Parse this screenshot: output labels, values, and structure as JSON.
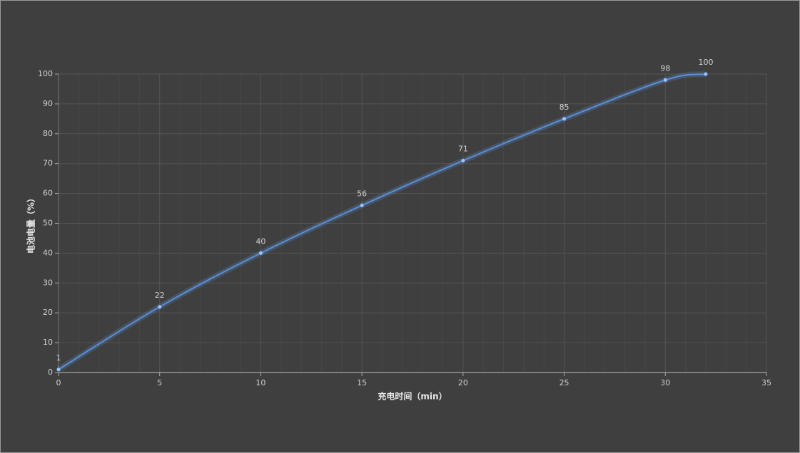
{
  "chart_data": {
    "type": "line",
    "x_label": "充电时间（min）",
    "y_label": "电池电量（%）",
    "x": [
      0,
      5,
      10,
      15,
      20,
      25,
      30,
      32
    ],
    "series": [
      {
        "name": "电池电量",
        "color": "#5b8fd6",
        "values": [
          1,
          22,
          40,
          56,
          71,
          85,
          98,
          100
        ]
      }
    ],
    "xlim": [
      0,
      35
    ],
    "xticks": [
      0,
      5,
      10,
      15,
      20,
      25,
      30,
      35
    ],
    "ylim": [
      0,
      100
    ],
    "yticks": [
      0,
      10,
      20,
      30,
      40,
      50,
      60,
      70,
      80,
      90,
      100
    ],
    "grid": true
  }
}
